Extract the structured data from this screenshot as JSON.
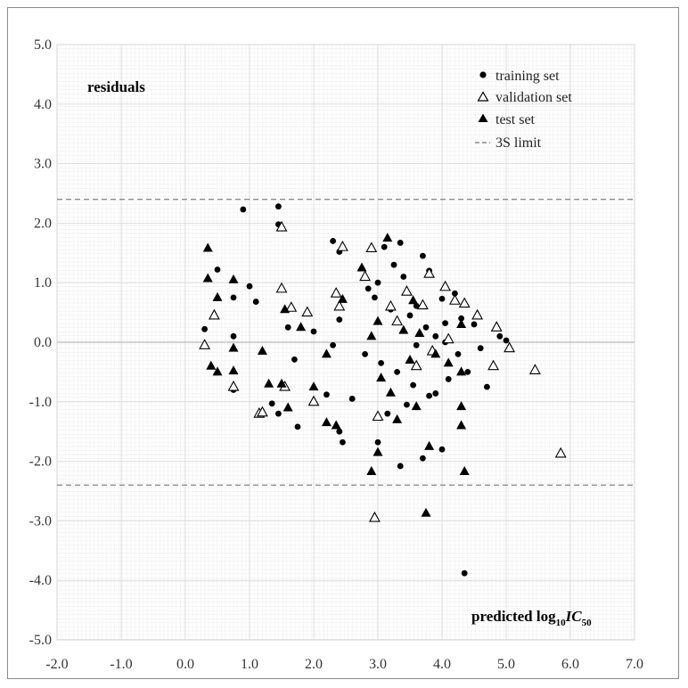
{
  "chart_data": {
    "type": "scatter",
    "ylabel": "residuals",
    "xlabel_parts": {
      "main": "predicted log",
      "sub1": "10",
      "italic": "IC",
      "sub2": "50"
    },
    "xlim": [
      -2.0,
      7.0
    ],
    "ylim": [
      -5.0,
      5.0
    ],
    "x_ticks": [
      -2.0,
      -1.0,
      0.0,
      1.0,
      2.0,
      3.0,
      4.0,
      5.0,
      6.0,
      7.0
    ],
    "y_ticks": [
      5.0,
      4.0,
      3.0,
      2.0,
      1.0,
      0.0,
      -1.0,
      -2.0,
      -3.0,
      -4.0,
      -5.0
    ],
    "x_tick_labels": [
      "-2.0",
      "-1.0",
      "0.0",
      "1.0",
      "2.0",
      "3.0",
      "4.0",
      "5.0",
      "6.0",
      "7.0"
    ],
    "y_tick_labels": [
      "5.0",
      "4.0",
      "3.0",
      "2.0",
      "1.0",
      "0.0",
      "-1.0",
      "-2.0",
      "-3.0",
      "-4.0",
      "-5.0"
    ],
    "limit_value": 2.4,
    "grid": true,
    "legend_position": "top-right",
    "legend": [
      "training set",
      "validation set",
      "test set",
      "3S limit"
    ],
    "colors": {
      "marker": "#000000",
      "limit_line": "#777777",
      "zero_line": "#aaaaaa",
      "grid": "#d7d7d7"
    },
    "series": [
      {
        "name": "training set",
        "marker": "circle",
        "points": [
          [
            0.9,
            2.23
          ],
          [
            1.45,
            2.28
          ],
          [
            1.45,
            1.98
          ],
          [
            2.3,
            1.7
          ],
          [
            2.4,
            1.52
          ],
          [
            3.35,
            1.67
          ],
          [
            3.7,
            1.45
          ],
          [
            3.1,
            1.6
          ],
          [
            3.4,
            1.1
          ],
          [
            3.8,
            1.2
          ],
          [
            4.2,
            0.82
          ],
          [
            4.0,
            0.73
          ],
          [
            3.6,
            0.61
          ],
          [
            4.3,
            0.4
          ],
          [
            4.5,
            0.3
          ],
          [
            4.9,
            0.1
          ],
          [
            5.0,
            0.03
          ],
          [
            4.6,
            -0.1
          ],
          [
            4.4,
            -0.5
          ],
          [
            4.7,
            -0.75
          ],
          [
            4.1,
            -0.62
          ],
          [
            3.9,
            -0.86
          ],
          [
            4.0,
            -1.8
          ],
          [
            3.7,
            -1.95
          ],
          [
            3.35,
            -2.08
          ],
          [
            3.0,
            -1.68
          ],
          [
            2.45,
            -1.68
          ],
          [
            2.4,
            -1.5
          ],
          [
            1.75,
            -1.42
          ],
          [
            1.45,
            -1.2
          ],
          [
            1.35,
            -1.03
          ],
          [
            1.1,
            0.68
          ],
          [
            1.0,
            0.94
          ],
          [
            0.5,
            1.22
          ],
          [
            0.3,
            0.22
          ],
          [
            0.75,
            0.75
          ],
          [
            1.6,
            0.25
          ],
          [
            2.0,
            0.18
          ],
          [
            2.4,
            0.38
          ],
          [
            2.85,
            0.9
          ],
          [
            2.95,
            0.75
          ],
          [
            3.2,
            0.55
          ],
          [
            3.5,
            0.45
          ],
          [
            3.75,
            0.25
          ],
          [
            3.9,
            0.1
          ],
          [
            4.05,
            0.0
          ],
          [
            2.3,
            -0.05
          ],
          [
            2.8,
            -0.2
          ],
          [
            3.05,
            -0.35
          ],
          [
            3.3,
            -0.5
          ],
          [
            3.55,
            -0.72
          ],
          [
            3.8,
            -0.9
          ],
          [
            2.2,
            -0.88
          ],
          [
            2.6,
            -0.95
          ],
          [
            3.15,
            -1.2
          ],
          [
            3.45,
            -1.05
          ],
          [
            4.35,
            -3.88
          ],
          [
            0.75,
            -0.8
          ],
          [
            0.75,
            0.1
          ],
          [
            1.7,
            -0.29
          ],
          [
            3.0,
            1.0
          ],
          [
            3.25,
            1.3
          ],
          [
            4.05,
            0.32
          ],
          [
            4.25,
            -0.2
          ],
          [
            3.6,
            -0.05
          ]
        ]
      },
      {
        "name": "validation set",
        "marker": "triangle-open",
        "points": [
          [
            1.5,
            1.93
          ],
          [
            2.45,
            1.6
          ],
          [
            2.9,
            1.58
          ],
          [
            3.8,
            1.15
          ],
          [
            4.05,
            0.93
          ],
          [
            3.45,
            0.85
          ],
          [
            4.35,
            0.65
          ],
          [
            4.55,
            0.45
          ],
          [
            4.85,
            0.25
          ],
          [
            5.05,
            -0.1
          ],
          [
            5.45,
            -0.47
          ],
          [
            5.85,
            -1.87
          ],
          [
            4.8,
            -0.4
          ],
          [
            2.95,
            -2.95
          ],
          [
            1.55,
            -0.75
          ],
          [
            1.15,
            -1.2
          ],
          [
            0.45,
            0.45
          ],
          [
            0.3,
            -0.05
          ],
          [
            0.75,
            -0.75
          ],
          [
            1.5,
            0.9
          ],
          [
            1.65,
            0.58
          ],
          [
            1.9,
            0.5
          ],
          [
            2.35,
            0.82
          ],
          [
            2.4,
            0.6
          ],
          [
            2.8,
            1.1
          ],
          [
            3.3,
            0.35
          ],
          [
            3.7,
            0.62
          ],
          [
            4.2,
            0.7
          ],
          [
            3.0,
            -1.25
          ],
          [
            3.6,
            -0.4
          ],
          [
            4.1,
            0.05
          ],
          [
            2.0,
            -1.0
          ],
          [
            1.2,
            -1.18
          ],
          [
            3.85,
            -0.15
          ],
          [
            3.2,
            0.6
          ]
        ]
      },
      {
        "name": "test set",
        "marker": "triangle-filled",
        "points": [
          [
            0.35,
            1.58
          ],
          [
            0.35,
            1.07
          ],
          [
            0.75,
            1.05
          ],
          [
            0.5,
            0.75
          ],
          [
            0.4,
            -0.4
          ],
          [
            0.5,
            -0.5
          ],
          [
            0.75,
            -0.1
          ],
          [
            0.75,
            -0.48
          ],
          [
            1.55,
            0.55
          ],
          [
            1.5,
            -0.7
          ],
          [
            1.6,
            -1.1
          ],
          [
            1.2,
            -0.15
          ],
          [
            1.3,
            -0.7
          ],
          [
            2.45,
            0.72
          ],
          [
            2.75,
            1.25
          ],
          [
            3.15,
            1.75
          ],
          [
            3.55,
            0.7
          ],
          [
            4.3,
            0.3
          ],
          [
            4.3,
            -0.5
          ],
          [
            4.3,
            -1.08
          ],
          [
            4.3,
            -1.4
          ],
          [
            4.35,
            -2.17
          ],
          [
            3.75,
            -2.87
          ],
          [
            2.9,
            -2.17
          ],
          [
            3.0,
            -1.85
          ],
          [
            3.8,
            -1.75
          ],
          [
            3.3,
            -1.3
          ],
          [
            3.6,
            -1.08
          ],
          [
            2.2,
            -1.35
          ],
          [
            2.35,
            -1.4
          ],
          [
            2.0,
            -0.75
          ],
          [
            3.0,
            0.35
          ],
          [
            3.4,
            0.2
          ],
          [
            3.9,
            -0.2
          ],
          [
            3.05,
            -0.6
          ],
          [
            3.2,
            -0.85
          ],
          [
            3.5,
            -0.3
          ],
          [
            4.1,
            -0.35
          ],
          [
            3.65,
            0.15
          ],
          [
            1.8,
            0.25
          ],
          [
            2.2,
            -0.2
          ],
          [
            2.9,
            0.1
          ]
        ]
      }
    ]
  }
}
